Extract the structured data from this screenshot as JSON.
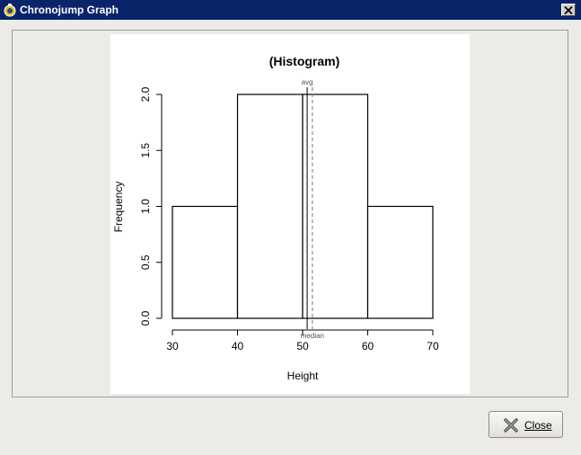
{
  "window": {
    "title": "Chronojump Graph",
    "icon": "chronojump-app-icon",
    "close_icon": "close-x-icon"
  },
  "chart_data": {
    "type": "bar",
    "title": "(Histogram)",
    "xlabel": "Height",
    "ylabel": "Frequency",
    "bins": [
      {
        "from": 30,
        "to": 40,
        "count": 1
      },
      {
        "from": 40,
        "to": 50,
        "count": 2
      },
      {
        "from": 50,
        "to": 60,
        "count": 2
      },
      {
        "from": 60,
        "to": 70,
        "count": 1
      }
    ],
    "xlim": [
      30,
      70
    ],
    "ylim": [
      0,
      2
    ],
    "x_ticks": [
      "30",
      "40",
      "50",
      "60",
      "70"
    ],
    "y_ticks": [
      "0.0",
      "0.5",
      "1.0",
      "1.5",
      "2.0"
    ],
    "annotations": [
      {
        "label": "avg",
        "x": 50.7,
        "style": "solid",
        "position": "top"
      },
      {
        "label": "median",
        "x": 51.5,
        "style": "dashed",
        "position": "bottom"
      }
    ],
    "grid": false
  },
  "buttons": {
    "close_label": "Close",
    "close_icon": "close-x-icon"
  }
}
